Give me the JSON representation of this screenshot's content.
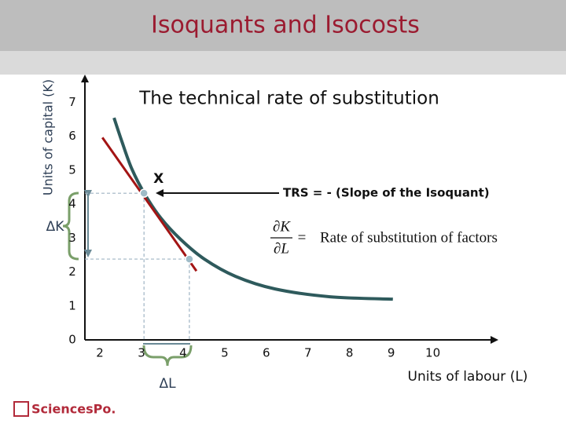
{
  "header": {
    "title": "Isoquants and Isocosts"
  },
  "chart_data": {
    "type": "line",
    "subtitle": "The technical rate of substitution",
    "x_label": "Units of labour (L)",
    "y_label": "Units of capital (K)",
    "xlim": [
      1.64,
      11.5
    ],
    "ylim": [
      0,
      7.7
    ],
    "xticks": [
      2,
      3,
      4,
      5,
      6,
      7,
      8,
      9,
      10
    ],
    "yticks": [
      0,
      1,
      2,
      3,
      4,
      5,
      6,
      7
    ],
    "grid": false,
    "series": [
      {
        "color": "#2e5a5c",
        "x": [
          2.34,
          2.53,
          2.77,
          3.09,
          3.47,
          3.94,
          4.51,
          5.26,
          6.21,
          7.53,
          9.04
        ],
        "values": [
          6.54,
          5.84,
          5.03,
          4.27,
          3.58,
          2.96,
          2.38,
          1.87,
          1.5,
          1.27,
          1.2
        ]
      },
      {
        "color": "#a31414",
        "x": [
          2.06,
          4.32
        ],
        "values": [
          5.96,
          2.03
        ]
      }
    ],
    "points": {
      "color": "#9fbcc8",
      "x": [
        3.06,
        4.15
      ],
      "values": [
        4.32,
        2.38
      ]
    },
    "point_label": "X",
    "trs_label": "TRS = - (Slope of the Isoquant)",
    "formula_numerator": "∂K",
    "formula_denominator": "∂L",
    "formula_equals": "=",
    "formula_text": "Rate of substitution of factors",
    "delta_k_label": "ΔK",
    "delta_l_label": "ΔL"
  },
  "footer": {
    "logo": "SciencesPo."
  }
}
